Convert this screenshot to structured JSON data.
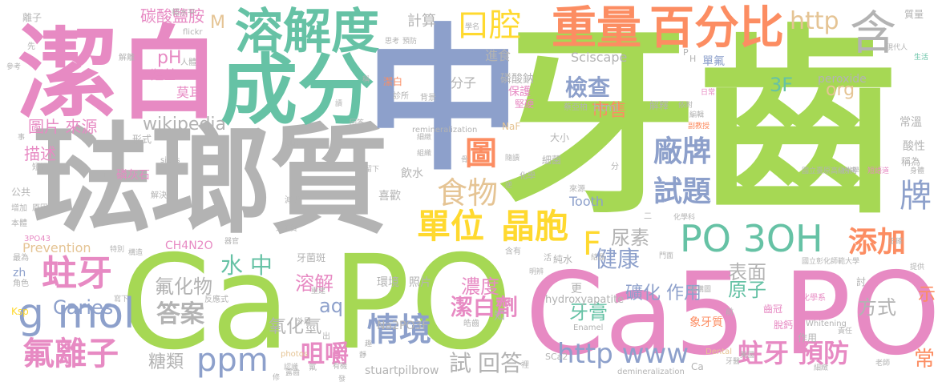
{
  "palette": {
    "green": "#a6d854",
    "gray": "#b3b3b3",
    "pink": "#e78ac3",
    "blue": "#8da0cb",
    "orange": "#fc8d62",
    "yellow": "#ffd92f",
    "tan": "#e5c494",
    "teal": "#66c2a5"
  },
  "words": [
    {
      "text": "牙齒",
      "color": "green",
      "weight": "very-large"
    },
    {
      "text": "琺瑯質",
      "color": "gray",
      "weight": "very-large"
    },
    {
      "text": "潔白",
      "color": "pink",
      "weight": "large"
    },
    {
      "text": "中",
      "color": "blue",
      "weight": "large"
    },
    {
      "text": "Ca PO",
      "color": "green",
      "weight": "very-large"
    },
    {
      "text": "Ca5 PO",
      "color": "pink",
      "weight": "very-large"
    },
    {
      "text": "成分",
      "color": "teal",
      "weight": "large"
    },
    {
      "text": "溶解度",
      "color": "teal",
      "weight": "large"
    },
    {
      "text": "口腔",
      "color": "yellow",
      "weight": "medium"
    },
    {
      "text": "重量",
      "color": "orange",
      "weight": "medium"
    },
    {
      "text": "百分比",
      "color": "orange",
      "weight": "medium"
    },
    {
      "text": "含",
      "color": "gray",
      "weight": "medium"
    },
    {
      "text": "PO 3OH",
      "color": "teal",
      "weight": "medium"
    },
    {
      "text": "蛀牙",
      "color": "pink",
      "weight": "medium"
    },
    {
      "text": "g mol",
      "color": "blue",
      "weight": "medium"
    },
    {
      "text": "氟離子",
      "color": "pink",
      "weight": "medium"
    },
    {
      "text": "ppm",
      "color": "blue",
      "weight": "medium"
    },
    {
      "text": "單位",
      "color": "yellow",
      "weight": "medium"
    },
    {
      "text": "晶胞",
      "color": "yellow",
      "weight": "medium"
    },
    {
      "text": "F",
      "color": "yellow",
      "weight": "medium"
    },
    {
      "text": "添加",
      "color": "orange",
      "weight": "medium"
    },
    {
      "text": "廠牌",
      "color": "blue",
      "weight": "medium"
    },
    {
      "text": "試題",
      "color": "blue",
      "weight": "medium"
    },
    {
      "text": "食物",
      "color": "tan",
      "weight": "medium"
    },
    {
      "text": "圖",
      "color": "orange",
      "weight": "medium"
    },
    {
      "text": "牌",
      "color": "blue",
      "weight": "medium"
    },
    {
      "text": "http www",
      "color": "blue",
      "weight": "medium"
    },
    {
      "text": "蛀牙 預防",
      "color": "pink",
      "weight": "medium"
    },
    {
      "text": "情境",
      "color": "blue",
      "weight": "medium"
    },
    {
      "text": "回答",
      "color": "gray",
      "weight": "small"
    },
    {
      "text": "試",
      "color": "gray",
      "weight": "small"
    },
    {
      "text": "咀嚼",
      "color": "pink",
      "weight": "small"
    },
    {
      "text": "答案",
      "color": "gray",
      "weight": "small"
    },
    {
      "text": "糖類",
      "color": "gray",
      "weight": "small"
    },
    {
      "text": "Caries",
      "color": "blue",
      "weight": "small"
    },
    {
      "text": "氟化物",
      "color": "gray",
      "weight": "small"
    },
    {
      "text": "水 中",
      "color": "teal",
      "weight": "small"
    },
    {
      "text": "溶解",
      "color": "pink",
      "weight": "small"
    },
    {
      "text": "aq",
      "color": "blue",
      "weight": "small"
    },
    {
      "text": "濃度",
      "color": "pink",
      "weight": "small"
    },
    {
      "text": "潔白劑",
      "color": "pink",
      "weight": "small"
    },
    {
      "text": "牙膏",
      "color": "teal",
      "weight": "small"
    },
    {
      "text": "健康",
      "color": "blue",
      "weight": "small"
    },
    {
      "text": "表面",
      "color": "gray",
      "weight": "small"
    },
    {
      "text": "原子",
      "color": "teal",
      "weight": "small"
    },
    {
      "text": "礦化 作用",
      "color": "blue",
      "weight": "small"
    },
    {
      "text": "尿素",
      "color": "gray",
      "weight": "small"
    },
    {
      "text": "方式",
      "color": "gray",
      "weight": "small"
    },
    {
      "text": "檢查",
      "color": "blue",
      "weight": "small"
    },
    {
      "text": "市售",
      "color": "orange",
      "weight": "small"
    },
    {
      "text": "http",
      "color": "tan",
      "weight": "small"
    },
    {
      "text": "org",
      "color": "tan",
      "weight": "small"
    },
    {
      "text": "3F",
      "color": "teal",
      "weight": "small"
    },
    {
      "text": "wikipedia",
      "color": "gray",
      "weight": "small"
    },
    {
      "text": "圖片 來源",
      "color": "pink",
      "weight": "small"
    },
    {
      "text": "碳酸鹽胺",
      "color": "pink",
      "weight": "small"
    },
    {
      "text": "pH",
      "color": "pink",
      "weight": "small"
    },
    {
      "text": "羥基",
      "color": "pink",
      "weight": "small"
    },
    {
      "text": "莫耳",
      "color": "pink",
      "weight": "small"
    },
    {
      "text": "計算",
      "color": "gray",
      "weight": "small"
    },
    {
      "text": "M",
      "color": "tan",
      "weight": "small"
    },
    {
      "text": "示",
      "color": "orange",
      "weight": "small"
    },
    {
      "text": "常",
      "color": "orange",
      "weight": "small"
    },
    {
      "text": "氧化氫",
      "color": "gray",
      "weight": "small"
    },
    {
      "text": "描述",
      "color": "pink",
      "weight": "small"
    },
    {
      "text": "peroxide",
      "color": "gray",
      "weight": "tiny"
    },
    {
      "text": "Sciscape",
      "color": "gray",
      "weight": "tiny"
    },
    {
      "text": "html",
      "color": "gray",
      "weight": "tiny"
    },
    {
      "text": "Tooth",
      "color": "blue",
      "weight": "tiny"
    },
    {
      "text": "Prevention",
      "color": "tan",
      "weight": "tiny"
    },
    {
      "text": "Na2PO3F",
      "color": "gray",
      "weight": "tiny"
    },
    {
      "text": "stuartpilbrow",
      "color": "gray",
      "weight": "tiny"
    },
    {
      "text": "CH4N2O",
      "color": "pink",
      "weight": "tiny"
    },
    {
      "text": "hydroxyapatite",
      "color": "gray",
      "weight": "tiny"
    },
    {
      "text": "remineralization",
      "color": "gray",
      "weight": "tiny"
    },
    {
      "text": "demineralization",
      "color": "gray",
      "weight": "tiny"
    },
    {
      "text": "Enamel",
      "color": "gray",
      "weight": "tiny"
    },
    {
      "text": "Whitening",
      "color": "gray",
      "weight": "tiny"
    },
    {
      "text": "Dental",
      "color": "tan",
      "weight": "tiny"
    },
    {
      "text": "photos",
      "color": "tan",
      "weight": "tiny"
    },
    {
      "text": "flickr",
      "color": "gray",
      "weight": "tiny"
    },
    {
      "text": "sizes",
      "color": "gray",
      "weight": "tiny"
    },
    {
      "text": "NaF",
      "color": "tan",
      "weight": "tiny"
    },
    {
      "text": "Ksp",
      "color": "yellow",
      "weight": "tiny"
    },
    {
      "text": "3PO43",
      "color": "pink",
      "weight": "tiny"
    },
    {
      "text": "zh",
      "color": "blue",
      "weight": "tiny"
    },
    {
      "text": "Ca",
      "color": "gray",
      "weight": "tiny"
    },
    {
      "text": "SCa2",
      "color": "gray",
      "weight": "tiny"
    },
    {
      "text": "P",
      "color": "gray",
      "weight": "tiny"
    },
    {
      "text": "H",
      "color": "gray",
      "weight": "tiny"
    },
    {
      "text": "離子",
      "color": "gray",
      "weight": "tiny"
    },
    {
      "text": "楊水平",
      "color": "gray",
      "weight": "tiny"
    },
    {
      "text": "參考",
      "color": "gray",
      "weight": "tiny"
    },
    {
      "text": "解離",
      "color": "gray",
      "weight": "tiny"
    },
    {
      "text": "先",
      "color": "gray",
      "weight": "tiny"
    },
    {
      "text": "人體",
      "color": "gray",
      "weight": "tiny"
    },
    {
      "text": "思考",
      "color": "gray",
      "weight": "tiny"
    },
    {
      "text": "預防",
      "color": "gray",
      "weight": "tiny"
    },
    {
      "text": "學名",
      "color": "gray",
      "weight": "tiny"
    },
    {
      "text": "進食",
      "color": "gray",
      "weight": "tiny"
    },
    {
      "text": "潔白",
      "color": "orange",
      "weight": "tiny"
    },
    {
      "text": "分子",
      "color": "gray",
      "weight": "tiny"
    },
    {
      "text": "磷酸鈉",
      "color": "gray",
      "weight": "tiny"
    },
    {
      "text": "保護",
      "color": "pink",
      "weight": "tiny"
    },
    {
      "text": "堅硬",
      "color": "pink",
      "weight": "tiny"
    },
    {
      "text": "單氟",
      "color": "blue",
      "weight": "tiny"
    },
    {
      "text": "生活",
      "color": "teal",
      "weight": "tiny"
    },
    {
      "text": "現代人",
      "color": "gray",
      "weight": "tiny"
    },
    {
      "text": "質量",
      "color": "gray",
      "weight": "tiny"
    },
    {
      "text": "日常",
      "color": "pink",
      "weight": "tiny"
    },
    {
      "text": "蔡亞柏",
      "color": "gray",
      "weight": "tiny"
    },
    {
      "text": "解釋",
      "color": "gray",
      "weight": "tiny"
    },
    {
      "text": "依附",
      "color": "gray",
      "weight": "tiny"
    },
    {
      "text": "編輯",
      "color": "gray",
      "weight": "tiny"
    },
    {
      "text": "副教授",
      "color": "orange",
      "weight": "tiny"
    },
    {
      "text": "常溫",
      "color": "gray",
      "weight": "tiny"
    },
    {
      "text": "酸性",
      "color": "gray",
      "weight": "tiny"
    },
    {
      "text": "稱為",
      "color": "gray",
      "weight": "tiny"
    },
    {
      "text": "身體",
      "color": "gray",
      "weight": "tiny"
    },
    {
      "text": "國立臺原高級中學",
      "color": "gray",
      "weight": "tiny"
    },
    {
      "text": "扮演",
      "color": "gray",
      "weight": "tiny"
    },
    {
      "text": "短語道",
      "color": "pink",
      "weight": "tiny"
    },
    {
      "text": "化學科",
      "color": "gray",
      "weight": "tiny"
    },
    {
      "text": "正確",
      "color": "gray",
      "weight": "tiny"
    },
    {
      "text": "提供",
      "color": "gray",
      "weight": "tiny"
    },
    {
      "text": "國立彰化師範大學",
      "color": "gray",
      "weight": "tiny"
    },
    {
      "text": "結構圖",
      "color": "gray",
      "weight": "tiny"
    },
    {
      "text": "齒冠",
      "color": "pink",
      "weight": "tiny"
    },
    {
      "text": "象牙質",
      "color": "orange",
      "weight": "tiny"
    },
    {
      "text": "脫鈣",
      "color": "pink",
      "weight": "tiny"
    },
    {
      "text": "責任",
      "color": "gray",
      "weight": "tiny"
    },
    {
      "text": "老師",
      "color": "gray",
      "weight": "tiny"
    },
    {
      "text": "細緻",
      "color": "gray",
      "weight": "tiny"
    },
    {
      "text": "化學系",
      "color": "pink",
      "weight": "tiny"
    },
    {
      "text": "作用",
      "color": "gray",
      "weight": "tiny"
    },
    {
      "text": "牙醫",
      "color": "gray",
      "weight": "tiny"
    },
    {
      "text": "美國",
      "color": "gray",
      "weight": "tiny"
    },
    {
      "text": "前",
      "color": "gray",
      "weight": "tiny"
    },
    {
      "text": "更",
      "color": "gray",
      "weight": "tiny"
    },
    {
      "text": "知",
      "color": "gray",
      "weight": "tiny"
    },
    {
      "text": "純水",
      "color": "gray",
      "weight": "tiny"
    },
    {
      "text": "含有",
      "color": "gray",
      "weight": "tiny"
    },
    {
      "text": "結晶",
      "color": "gray",
      "weight": "tiny"
    },
    {
      "text": "門面",
      "color": "gray",
      "weight": "tiny"
    },
    {
      "text": "明辨",
      "color": "gray",
      "weight": "tiny"
    },
    {
      "text": "討",
      "color": "gray",
      "weight": "tiny"
    },
    {
      "text": "外層",
      "color": "gray",
      "weight": "tiny"
    },
    {
      "text": "照片",
      "color": "gray",
      "weight": "tiny"
    },
    {
      "text": "環境",
      "color": "gray",
      "weight": "tiny"
    },
    {
      "text": "皓齒",
      "color": "gray",
      "weight": "tiny"
    },
    {
      "text": "牙菌斑",
      "color": "gray",
      "weight": "tiny"
    },
    {
      "text": "重建",
      "color": "gray",
      "weight": "tiny"
    },
    {
      "text": "反應式",
      "color": "gray",
      "weight": "tiny"
    },
    {
      "text": "器官",
      "color": "gray",
      "weight": "tiny"
    },
    {
      "text": "構造",
      "color": "gray",
      "weight": "tiny"
    },
    {
      "text": "特別",
      "color": "gray",
      "weight": "tiny"
    },
    {
      "text": "最為",
      "color": "gray",
      "weight": "tiny"
    },
    {
      "text": "角色",
      "color": "gray",
      "weight": "tiny"
    },
    {
      "text": "寫下",
      "color": "gray",
      "weight": "tiny"
    },
    {
      "text": "本體",
      "color": "gray",
      "weight": "tiny"
    },
    {
      "text": "增加",
      "color": "gray",
      "weight": "tiny"
    },
    {
      "text": "原因",
      "color": "gray",
      "weight": "tiny"
    },
    {
      "text": "公共",
      "color": "gray",
      "weight": "tiny"
    },
    {
      "text": "短語",
      "color": "gray",
      "weight": "tiny"
    },
    {
      "text": "事",
      "color": "gray",
      "weight": "tiny"
    },
    {
      "text": "形式",
      "color": "gray",
      "weight": "tiny"
    },
    {
      "text": "知識",
      "color": "gray",
      "weight": "tiny"
    },
    {
      "text": "磷灰石",
      "color": "pink",
      "weight": "tiny"
    },
    {
      "text": "解決",
      "color": "gray",
      "weight": "tiny"
    },
    {
      "text": "飲水",
      "color": "gray",
      "weight": "tiny"
    },
    {
      "text": "喜歡",
      "color": "gray",
      "weight": "tiny"
    },
    {
      "text": "細菌",
      "color": "gray",
      "weight": "tiny"
    },
    {
      "text": "大小",
      "color": "gray",
      "weight": "tiny"
    },
    {
      "text": "來源",
      "color": "gray",
      "weight": "tiny"
    },
    {
      "text": "化學",
      "color": "gray",
      "weight": "tiny"
    },
    {
      "text": "減少",
      "color": "gray",
      "weight": "tiny"
    },
    {
      "text": "正",
      "color": "gray",
      "weight": "tiny"
    },
    {
      "text": "診所",
      "color": "gray",
      "weight": "tiny"
    },
    {
      "text": "背景",
      "color": "gray",
      "weight": "tiny"
    },
    {
      "text": "回答",
      "color": "gray",
      "weight": "tiny"
    },
    {
      "text": "讀",
      "color": "gray",
      "weight": "tiny"
    },
    {
      "text": "稱",
      "color": "gray",
      "weight": "tiny"
    },
    {
      "text": "細緻",
      "color": "gray",
      "weight": "tiny"
    },
    {
      "text": "組織",
      "color": "gray",
      "weight": "tiny"
    },
    {
      "text": "留下",
      "color": "gray",
      "weight": "tiny"
    },
    {
      "text": "逆",
      "color": "gray",
      "weight": "tiny"
    },
    {
      "text": "隨讀",
      "color": "gray",
      "weight": "tiny"
    },
    {
      "text": "骨",
      "color": "gray",
      "weight": "tiny"
    },
    {
      "text": "分",
      "color": "gray",
      "weight": "tiny"
    },
    {
      "text": "二",
      "color": "gray",
      "weight": "tiny"
    },
    {
      "text": "氟",
      "color": "gray",
      "weight": "tiny"
    },
    {
      "text": "出",
      "color": "gray",
      "weight": "tiny"
    },
    {
      "text": "活",
      "color": "gray",
      "weight": "tiny"
    },
    {
      "text": "裡",
      "color": "gray",
      "weight": "tiny"
    },
    {
      "text": "牙釉質",
      "color": "gray",
      "weight": "tiny"
    },
    {
      "text": "有機",
      "color": "gray",
      "weight": "tiny"
    },
    {
      "text": "靜",
      "color": "gray",
      "weight": "tiny"
    },
    {
      "text": "趣",
      "color": "gray",
      "weight": "tiny"
    },
    {
      "text": "發",
      "color": "gray",
      "weight": "tiny"
    },
    {
      "text": "認識",
      "color": "gray",
      "weight": "tiny"
    },
    {
      "text": "露齒",
      "color": "gray",
      "weight": "tiny"
    },
    {
      "text": "修",
      "color": "gray",
      "weight": "tiny"
    }
  ]
}
